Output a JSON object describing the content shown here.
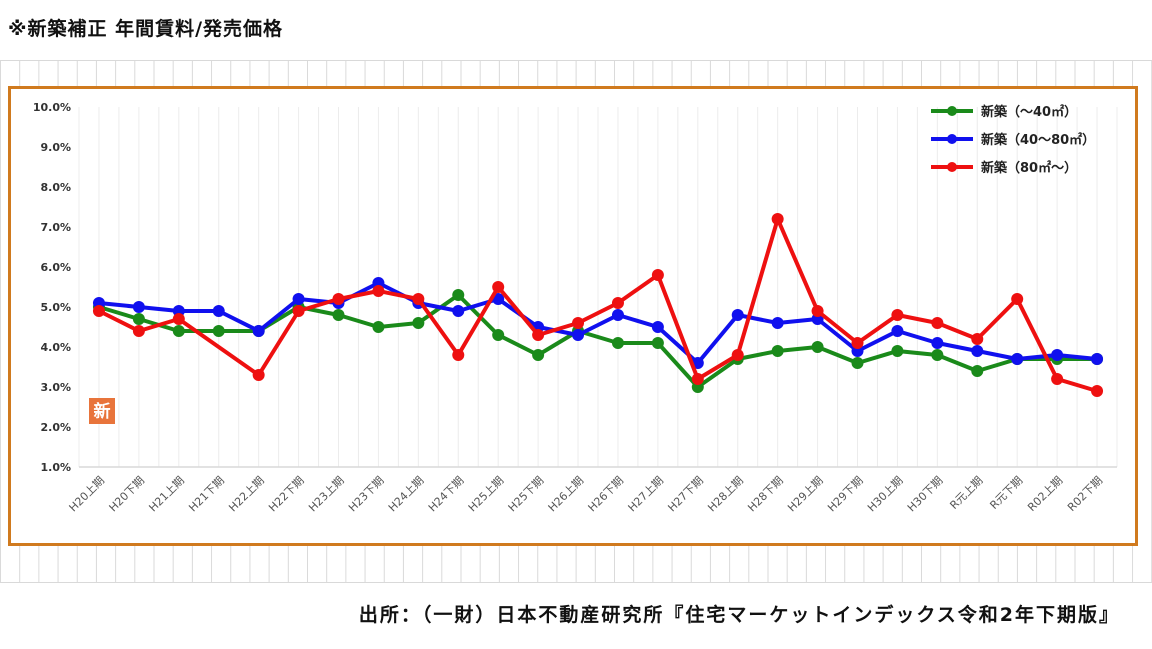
{
  "page": {
    "title": "※新築補正 年間賃料/発売価格",
    "source": "出所：（一財）日本不動産研究所『住宅マーケットインデックス令和2年下期版』",
    "badge": "新"
  },
  "colors": {
    "frame": "#d07a1e",
    "series_green": "#1a8a1a",
    "series_blue": "#1010ee",
    "series_red": "#ee1010"
  },
  "chart_data": {
    "type": "line",
    "title": "",
    "xlabel": "",
    "ylabel": "",
    "ylim": [
      1.0,
      10.0
    ],
    "y_ticks": [
      "10.0%",
      "9.0%",
      "8.0%",
      "7.0%",
      "6.0%",
      "5.0%",
      "4.0%",
      "3.0%",
      "2.0%",
      "1.0%"
    ],
    "legend_position": "top-right",
    "categories": [
      "H20上期",
      "H20下期",
      "H21上期",
      "H21下期",
      "H22上期",
      "H22下期",
      "H23上期",
      "H23下期",
      "H24上期",
      "H24下期",
      "H25上期",
      "H25下期",
      "H26上期",
      "H26下期",
      "H27上期",
      "H27下期",
      "H28上期",
      "H28下期",
      "H29上期",
      "H29下期",
      "H30上期",
      "H30下期",
      "R元上期",
      "R元下期",
      "R02上期",
      "R02下期"
    ],
    "series": [
      {
        "name": "新築（～40㎡）",
        "color": "#1a8a1a",
        "values": [
          5.0,
          4.7,
          4.4,
          4.4,
          4.4,
          5.0,
          4.8,
          4.5,
          4.6,
          5.3,
          4.3,
          3.8,
          4.4,
          4.1,
          4.1,
          3.0,
          3.7,
          3.9,
          4.0,
          3.6,
          3.9,
          3.8,
          3.4,
          3.7,
          3.7,
          3.7
        ]
      },
      {
        "name": "新築（40～80㎡）",
        "color": "#1010ee",
        "values": [
          5.1,
          5.0,
          4.9,
          4.9,
          4.4,
          5.2,
          5.1,
          5.6,
          5.1,
          4.9,
          5.2,
          4.5,
          4.3,
          4.8,
          4.5,
          3.6,
          4.8,
          4.6,
          4.7,
          3.9,
          4.4,
          4.1,
          3.9,
          3.7,
          3.8,
          3.7
        ]
      },
      {
        "name": "新築（80㎡～）",
        "color": "#ee1010",
        "values": [
          4.9,
          4.4,
          4.7,
          null,
          3.3,
          4.9,
          5.2,
          5.4,
          5.2,
          3.8,
          5.5,
          4.3,
          4.6,
          5.1,
          5.8,
          3.2,
          3.8,
          7.2,
          4.9,
          4.1,
          4.8,
          4.6,
          4.2,
          5.2,
          3.2,
          2.9
        ]
      }
    ]
  }
}
